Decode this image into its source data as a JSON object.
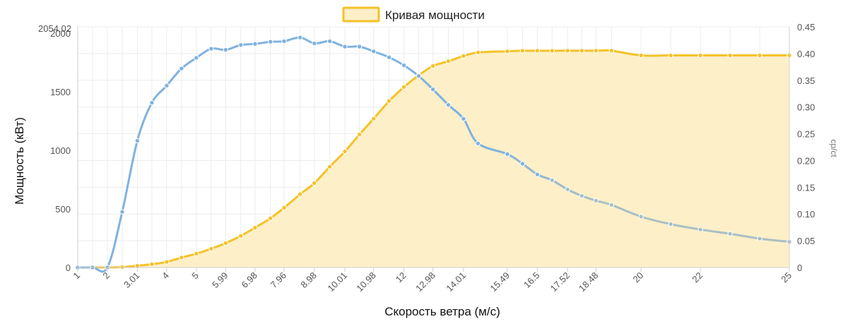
{
  "chart_data": {
    "type": "line",
    "title": "",
    "legend": {
      "position": "top-center",
      "entries": [
        {
          "label": "Кривая мощности",
          "color": "#F5C227",
          "fill": "#FDEFC8"
        }
      ]
    },
    "grid": true,
    "x": {
      "label": "Скорость ветра (м/с)",
      "tick_labels": [
        "1",
        "2",
        "3.01",
        "4",
        "5",
        "5.99",
        "6.98",
        "7.96",
        "8.98",
        "10.01",
        "10.98",
        "12",
        "12.98",
        "14.01",
        "15.49",
        "16.5",
        "17.52",
        "18.48",
        "20",
        "22",
        "25"
      ],
      "points": [
        "1",
        "1.5",
        "2",
        "2.5",
        "3.01",
        "3.5",
        "4",
        "4.5",
        "5",
        "5.5",
        "5.99",
        "6.5",
        "6.98",
        "7.5",
        "7.96",
        "8.5",
        "8.98",
        "9.5",
        "10.01",
        "10.5",
        "10.98",
        "11.5",
        "12",
        "12.5",
        "12.98",
        "13.5",
        "14.01",
        "14.5",
        "15.49",
        "16",
        "16.5",
        "17",
        "17.52",
        "18",
        "18.48",
        "19",
        "20",
        "21",
        "22",
        "23",
        "24",
        "25"
      ]
    },
    "y_left": {
      "label": "Мощность (кВт)",
      "range": [
        0,
        2054.02
      ],
      "ticks": [
        0,
        500,
        1000,
        1500,
        2000
      ],
      "max_label": "2054.02"
    },
    "y_right": {
      "label": "cp/ct",
      "range": [
        0,
        0.45
      ],
      "ticks": [
        "0",
        "0.05",
        "0.10",
        "0.15",
        "0.20",
        "0.25",
        "0.30",
        "0.35",
        "0.40",
        "0.45"
      ]
    },
    "series": [
      {
        "name": "Кривая мощности",
        "axis": "left",
        "color": "#F5C227",
        "fill": "#FDEFC8",
        "values": [
          0,
          0,
          0,
          3,
          15,
          28,
          48,
          85,
          118,
          160,
          208,
          270,
          340,
          420,
          510,
          625,
          720,
          860,
          990,
          1135,
          1270,
          1420,
          1540,
          1640,
          1720,
          1760,
          1805,
          1835,
          1845,
          1850,
          1850,
          1850,
          1850,
          1850,
          1850,
          1850,
          1810,
          1810,
          1810,
          1810,
          1810,
          1810
        ]
      },
      {
        "axis": "right",
        "color": "#7FB2E0",
        "color_end": "#A9BFC3",
        "values": [
          0,
          0,
          0,
          0.104,
          0.237,
          0.308,
          0.34,
          0.372,
          0.392,
          0.409,
          0.407,
          0.416,
          0.418,
          0.422,
          0.423,
          0.43,
          0.419,
          0.423,
          0.413,
          0.413,
          0.404,
          0.393,
          0.378,
          0.358,
          0.333,
          0.304,
          0.278,
          0.232,
          0.212,
          0.194,
          0.174,
          0.163,
          0.146,
          0.134,
          0.125,
          0.117,
          0.095,
          0.081,
          0.071,
          0.063,
          0.054,
          0.048
        ]
      }
    ]
  }
}
